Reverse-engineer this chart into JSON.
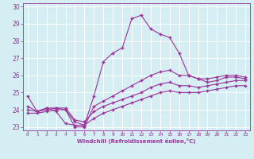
{
  "xlabel": "Windchill (Refroidissement éolien,°C)",
  "hours": [
    0,
    1,
    2,
    3,
    4,
    5,
    6,
    7,
    8,
    9,
    10,
    11,
    12,
    13,
    14,
    15,
    16,
    17,
    18,
    19,
    20,
    21,
    22,
    23
  ],
  "line1": [
    24.8,
    23.9,
    24.1,
    23.9,
    23.2,
    23.1,
    23.1,
    24.8,
    26.8,
    27.3,
    27.6,
    29.3,
    29.5,
    28.7,
    28.4,
    28.2,
    27.3,
    26.0,
    25.8,
    25.6,
    25.7,
    25.9,
    25.9,
    25.8
  ],
  "line2": [
    24.2,
    23.9,
    24.1,
    24.1,
    24.0,
    23.0,
    23.0,
    24.2,
    24.5,
    24.8,
    25.1,
    25.4,
    25.7,
    26.0,
    26.2,
    26.3,
    26.0,
    26.0,
    25.8,
    25.8,
    25.9,
    26.0,
    26.0,
    25.9
  ],
  "line3": [
    24.0,
    23.9,
    24.0,
    24.1,
    24.1,
    23.4,
    23.3,
    23.9,
    24.2,
    24.4,
    24.6,
    24.8,
    25.0,
    25.3,
    25.5,
    25.6,
    25.4,
    25.4,
    25.3,
    25.4,
    25.5,
    25.6,
    25.7,
    25.7
  ],
  "line4": [
    23.8,
    23.8,
    23.9,
    24.0,
    24.0,
    23.3,
    23.1,
    23.5,
    23.8,
    24.0,
    24.2,
    24.4,
    24.6,
    24.8,
    25.0,
    25.1,
    25.0,
    25.0,
    25.0,
    25.1,
    25.2,
    25.3,
    25.4,
    25.4
  ],
  "line_color": "#993399",
  "bg_color": "#d4eef4",
  "grid_color": "#ffffff",
  "ylim": [
    22.8,
    30.2
  ],
  "yticks": [
    23,
    24,
    25,
    26,
    27,
    28,
    29,
    30
  ],
  "xticks": [
    0,
    1,
    2,
    3,
    4,
    5,
    6,
    7,
    8,
    9,
    10,
    11,
    12,
    13,
    14,
    15,
    16,
    17,
    18,
    19,
    20,
    21,
    22,
    23
  ],
  "xlim": [
    -0.5,
    23.5
  ]
}
